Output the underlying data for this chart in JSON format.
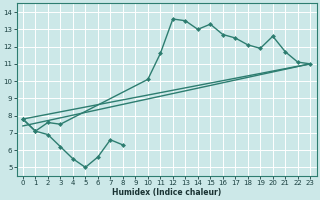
{
  "xlabel": "Humidex (Indice chaleur)",
  "xlim": [
    -0.5,
    23.5
  ],
  "ylim": [
    4.5,
    14.5
  ],
  "xticks": [
    0,
    1,
    2,
    3,
    4,
    5,
    6,
    7,
    8,
    9,
    10,
    11,
    12,
    13,
    14,
    15,
    16,
    17,
    18,
    19,
    20,
    21,
    22,
    23
  ],
  "yticks": [
    5,
    6,
    7,
    8,
    9,
    10,
    11,
    12,
    13,
    14
  ],
  "bg_color": "#cce8e8",
  "grid_color": "#ffffff",
  "line_color": "#2d7d70",
  "lower_x": [
    0,
    1,
    2,
    3,
    4,
    5,
    6,
    7,
    8
  ],
  "lower_y": [
    7.8,
    7.1,
    6.9,
    6.2,
    5.5,
    5.0,
    5.6,
    6.6,
    6.3
  ],
  "upper_x": [
    0,
    1,
    2,
    3,
    10,
    11,
    12,
    13,
    14,
    15,
    16,
    17,
    18,
    19,
    20,
    21,
    22,
    23
  ],
  "upper_y": [
    7.8,
    7.1,
    7.6,
    7.5,
    10.1,
    11.6,
    13.6,
    13.5,
    13.0,
    13.3,
    12.7,
    12.5,
    12.1,
    11.9,
    12.6,
    11.7,
    11.1,
    11.0
  ],
  "trend1_x": [
    0,
    23
  ],
  "trend1_y": [
    7.8,
    11.0
  ],
  "trend2_x": [
    0,
    23
  ],
  "trend2_y": [
    7.4,
    11.0
  ]
}
